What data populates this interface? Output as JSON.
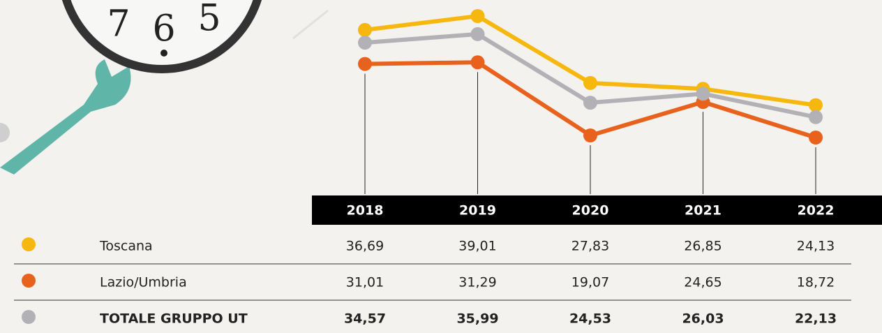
{
  "illustration": {
    "clock_numbers": [
      "7",
      "6",
      "5"
    ]
  },
  "chart_data": {
    "type": "line",
    "categories": [
      "2018",
      "2019",
      "2020",
      "2021",
      "2022"
    ],
    "series": [
      {
        "name": "Toscana",
        "color": "#f6b80f",
        "values": [
          36.69,
          39.01,
          27.83,
          26.85,
          24.13
        ],
        "value_labels": [
          "36,69",
          "39,01",
          "27,83",
          "26,85",
          "24,13"
        ]
      },
      {
        "name": "Lazio/Umbria",
        "color": "#e8621d",
        "values": [
          31.01,
          31.29,
          19.07,
          24.65,
          18.72
        ],
        "value_labels": [
          "31,01",
          "31,29",
          "19,07",
          "24,65",
          "18,72"
        ]
      },
      {
        "name": "TOTALE GRUPPO UT",
        "color": "#b2b2b6",
        "values": [
          34.57,
          35.99,
          24.53,
          26.03,
          22.13
        ],
        "value_labels": [
          "34,57",
          "35,99",
          "24,53",
          "26,03",
          "22,13"
        ]
      }
    ]
  }
}
